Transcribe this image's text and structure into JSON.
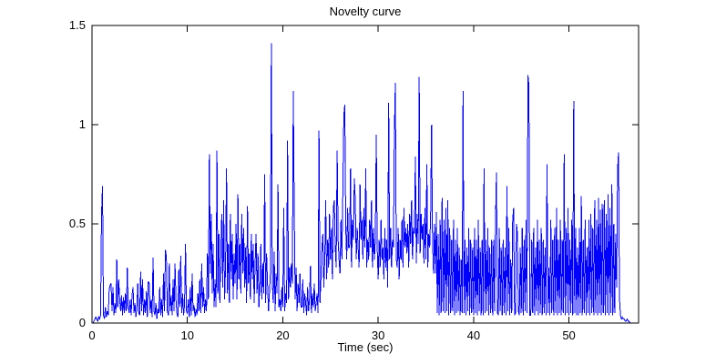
{
  "chart_data": {
    "type": "line",
    "title": "Novelty curve",
    "xlabel": "Time (sec)",
    "ylabel": "",
    "xlim": [
      0,
      57.3
    ],
    "ylim": [
      0,
      1.5
    ],
    "xticks": [
      0,
      10,
      20,
      30,
      40,
      50
    ],
    "yticks": [
      0,
      0.5,
      1,
      1.5
    ],
    "grid": false,
    "legend": "none",
    "box": true,
    "line_color": "#0000ff",
    "axis_color": "#000000",
    "background_color": "#ffffff",
    "x_start": 0,
    "x_step": 0.1,
    "series": [
      {
        "name": "novelty",
        "color": "#0000ff",
        "values": [
          0,
          0,
          0.01,
          0.02,
          0.03,
          0.02,
          0.01,
          0.03,
          0.02,
          0.04,
          0.55,
          0.69,
          0.04,
          0.02,
          0.08,
          0.03,
          0.06,
          0.04,
          0.17,
          0.19,
          0.2,
          0.06,
          0.18,
          0.04,
          0.1,
          0.05,
          0.32,
          0.08,
          0.22,
          0.12,
          0.06,
          0.14,
          0.04,
          0.13,
          0.05,
          0.15,
          0.06,
          0.28,
          0.08,
          0.05,
          0.12,
          0.04,
          0.14,
          0.18,
          0.05,
          0.1,
          0.03,
          0.08,
          0.2,
          0.05,
          0.04,
          0.26,
          0.06,
          0.22,
          0.04,
          0.12,
          0.05,
          0.16,
          0.03,
          0.21,
          0.2,
          0.05,
          0.12,
          0.03,
          0.33,
          0.06,
          0.04,
          0.1,
          0.02,
          0.07,
          0.05,
          0.18,
          0.04,
          0.12,
          0.03,
          0.25,
          0.06,
          0.37,
          0.33,
          0.06,
          0.04,
          0.3,
          0.06,
          0.14,
          0.04,
          0.22,
          0.06,
          0.3,
          0.12,
          0.05,
          0.03,
          0.27,
          0.08,
          0.34,
          0.05,
          0.15,
          0.04,
          0.09,
          0.4,
          0.06,
          0.05,
          0.12,
          0.03,
          0.18,
          0.04,
          0.25,
          0.06,
          0.09,
          0.03,
          0.07,
          0.04,
          0.15,
          0.06,
          0.22,
          0.05,
          0.3,
          0.08,
          0.18,
          0.05,
          0.12,
          0.06,
          0.35,
          0.12,
          0.85,
          0.25,
          0.55,
          0.15,
          0.4,
          0.08,
          0.22,
          0.08,
          0.87,
          0.15,
          0.45,
          0.1,
          0.35,
          0.55,
          0.18,
          0.62,
          0.12,
          0.28,
          0.78,
          0.15,
          0.4,
          0.1,
          0.55,
          0.22,
          0.45,
          0.12,
          0.35,
          0.2,
          0.5,
          0.12,
          0.65,
          0.22,
          0.4,
          0.15,
          0.55,
          0.25,
          0.48,
          0.18,
          0.38,
          0.1,
          0.59,
          0.2,
          0.35,
          0.12,
          0.45,
          0.22,
          0.4,
          0.1,
          0.3,
          0.45,
          0.15,
          0.35,
          0.08,
          0.2,
          0.4,
          0.12,
          0.3,
          0.15,
          0.75,
          0.1,
          0.35,
          0.2,
          0.06,
          0.15,
          0.25,
          1.41,
          0.2,
          0.1,
          0.36,
          0.06,
          0.25,
          0.15,
          0.7,
          0.08,
          0.12,
          0.06,
          0.18,
          0.08,
          0.58,
          0.06,
          0.15,
          0.1,
          0.92,
          0.12,
          0.28,
          0.18,
          0.3,
          0.2,
          1.17,
          0.58,
          0.12,
          0.28,
          0.06,
          0.2,
          0.1,
          0.25,
          0.08,
          0.08,
          0.22,
          0.05,
          0.15,
          0.1,
          0.04,
          0.18,
          0.06,
          0.12,
          0.29,
          0.05,
          0.15,
          0.08,
          0.2,
          0.06,
          0.1,
          0.15,
          0.05,
          0.97,
          0.1,
          0.22,
          0.38,
          0.45,
          0.18,
          0.32,
          0.62,
          0.22,
          0.42,
          0.28,
          0.55,
          0.32,
          0.48,
          0.22,
          0.58,
          0.62,
          0.38,
          0.28,
          0.87,
          0.42,
          0.32,
          0.25,
          0.52,
          0.32,
          0.68,
          1.05,
          1.1,
          0.48,
          0.32,
          0.58,
          0.38,
          0.38,
          0.78,
          0.28,
          0.52,
          0.42,
          0.73,
          0.62,
          0.32,
          0.48,
          0.38,
          0.28,
          0.7,
          0.42,
          0.52,
          0.32,
          0.58,
          0.38,
          0.78,
          0.28,
          0.42,
          0.32,
          0.52,
          0.38,
          0.62,
          0.28,
          0.48,
          0.32,
          0.42,
          0.95,
          0.38,
          0.22,
          0.42,
          0.28,
          0.52,
          0.32,
          0.38,
          0.22,
          0.48,
          0.28,
          0.42,
          0.18,
          1.11,
          0.32,
          0.48,
          0.28,
          0.42,
          0.38,
          0.98,
          1.21,
          0.32,
          0.28,
          0.48,
          0.22,
          0.42,
          0.32,
          0.52,
          0.28,
          0.58,
          0.38,
          0.48,
          0.35,
          0.5,
          0.28,
          0.55,
          0.4,
          0.62,
          0.32,
          0.48,
          0.45,
          0.84,
          0.3,
          0.55,
          0.4,
          1.24,
          0.35,
          0.55,
          0.42,
          0.5,
          0.3,
          0.58,
          0.32,
          0.8,
          0.28,
          0.45,
          0.38,
          0.55,
          1.0,
          0.42,
          0.25,
          0.5,
          0.25,
          0.56,
          0.05,
          0.45,
          0.04,
          0.52,
          0.05,
          0.63,
          0.06,
          0.52,
          0.05,
          0.58,
          0.06,
          0.62,
          0.04,
          0.48,
          0.05,
          0.42,
          0.06,
          0.52,
          0.04,
          0.42,
          0.05,
          0.48,
          0.06,
          0.38,
          0.04,
          0.32,
          0.05,
          1.17,
          0.05,
          0.42,
          0.04,
          0.38,
          0.06,
          0.48,
          0.04,
          0.42,
          0.05,
          0.38,
          0.04,
          0.48,
          0.05,
          0.42,
          0.04,
          0.52,
          0.06,
          0.38,
          0.04,
          0.42,
          0.04,
          0.78,
          0.05,
          0.42,
          0.06,
          0.48,
          0.04,
          0.38,
          0.05,
          0.42,
          0.04,
          0.42,
          0.06,
          0.52,
          0.76,
          0.05,
          0.04,
          0.48,
          0.06,
          0.38,
          0.04,
          0.42,
          0.05,
          0.38,
          0.04,
          0.69,
          0.06,
          0.48,
          0.04,
          0.32,
          0.05,
          0.52,
          0.58,
          0.04,
          0.05,
          0.5,
          0.45,
          0.06,
          0.04,
          0.38,
          0.05,
          0.48,
          0.04,
          0.42,
          0.06,
          0.52,
          0.05,
          1.25,
          1.2,
          0.04,
          0.04,
          0.42,
          0.05,
          0.48,
          0.04,
          0.38,
          0.06,
          0.52,
          0.04,
          0.42,
          0.05,
          0.48,
          0.04,
          0.42,
          0.05,
          0.38,
          0.04,
          0.8,
          0.05,
          0.28,
          0.04,
          0.52,
          0.05,
          0.42,
          0.04,
          0.48,
          0.05,
          0.58,
          0.04,
          0.42,
          0.05,
          0.52,
          0.04,
          0.42,
          0.05,
          0.85,
          0.04,
          0.48,
          0.05,
          0.58,
          0.04,
          0.42,
          0.05,
          0.52,
          0.04,
          1.12,
          0.05,
          0.48,
          0.04,
          0.38,
          0.04,
          0.48,
          0.05,
          0.64,
          0.04,
          0.42,
          0.05,
          0.52,
          0.04,
          0.38,
          0.05,
          0.52,
          0.04,
          0.55,
          0.05,
          0.48,
          0.04,
          0.62,
          0.05,
          0.52,
          0.04,
          0.63,
          0.05,
          0.57,
          0.04,
          0.6,
          0.05,
          0.62,
          0.04,
          0.55,
          0.05,
          0.65,
          0.04,
          0.58,
          0.05,
          0.7,
          0.04,
          0.5,
          0.05,
          0.45,
          0.18,
          0.78,
          0.86,
          0.12,
          0.04,
          0.02,
          0.03,
          0.02,
          0.02,
          0.01,
          0.01,
          0.02,
          0.01,
          0.01,
          0,
          0,
          0,
          0,
          0,
          0,
          0,
          0,
          0,
          0
        ]
      }
    ]
  }
}
